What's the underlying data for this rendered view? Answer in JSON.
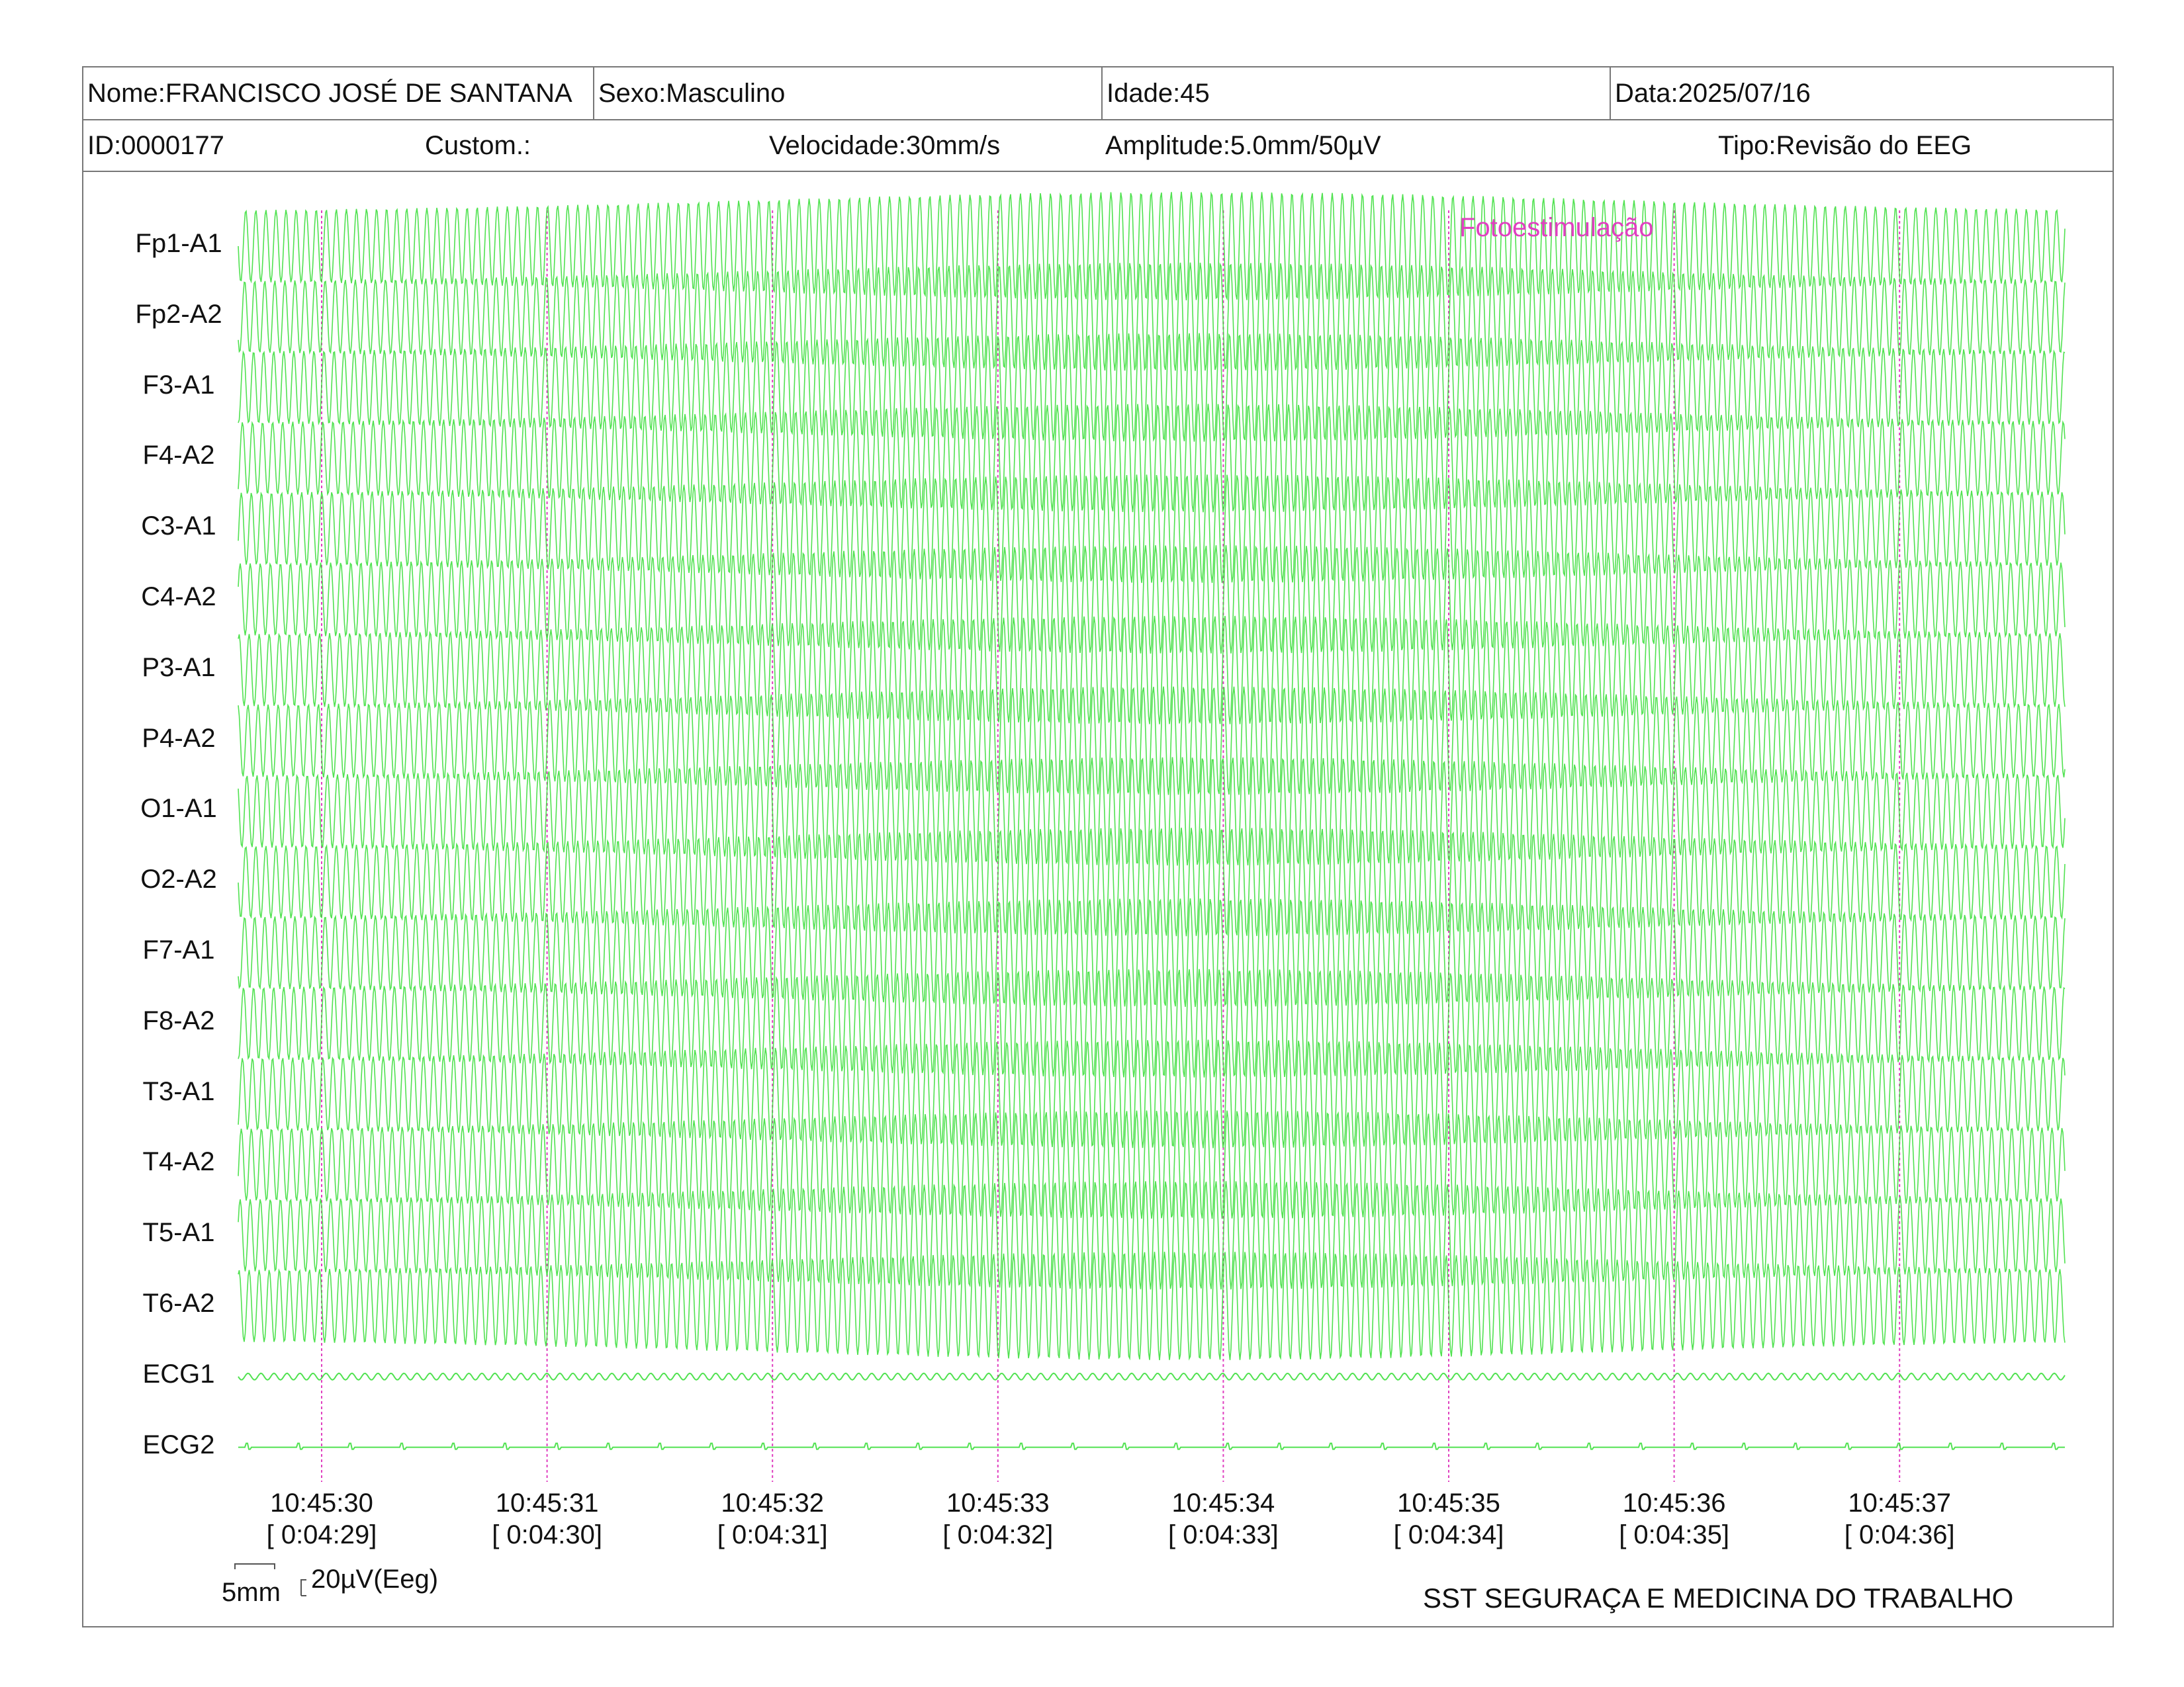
{
  "header": {
    "nome": "Nome:FRANCISCO JOSÉ DE SANTANA",
    "sexo": "Sexo:Masculino",
    "idade": "Idade:45",
    "data": "Data:2025/07/16",
    "id": "ID:0000177",
    "custom": "Custom.:",
    "velocidade": "Velocidade:30mm/s",
    "amplitude": "Amplitude:5.0mm/50µV",
    "tipo": "Tipo:Revisão do EEG"
  },
  "channels": [
    "Fp1-A1",
    "Fp2-A2",
    "F3-A1",
    "F4-A2",
    "C3-A1",
    "C4-A2",
    "P3-A1",
    "P4-A2",
    "O1-A1",
    "O2-A2",
    "F7-A1",
    "F8-A2",
    "T3-A1",
    "T4-A2",
    "T5-A1",
    "T6-A2",
    "ECG1",
    "ECG2"
  ],
  "event_marker": "Fotoestimulação",
  "time_marks": [
    {
      "clock": "10:45:30",
      "elapsed": "[ 0:04:29]"
    },
    {
      "clock": "10:45:31",
      "elapsed": "[ 0:04:30]"
    },
    {
      "clock": "10:45:32",
      "elapsed": "[ 0:04:31]"
    },
    {
      "clock": "10:45:33",
      "elapsed": "[ 0:04:32]"
    },
    {
      "clock": "10:45:34",
      "elapsed": "[ 0:04:33]"
    },
    {
      "clock": "10:45:35",
      "elapsed": "[ 0:04:34]"
    },
    {
      "clock": "10:45:36",
      "elapsed": "[ 0:04:35]"
    },
    {
      "clock": "10:45:37",
      "elapsed": "[ 0:04:36]"
    }
  ],
  "scale": {
    "time": "5mm",
    "amplitude": "20µV(Eeg)"
  },
  "footer": "SST SEGURAÇA E MEDICINA DO TRABALHO",
  "colors": {
    "trace": "#33dd33",
    "marker": "#e040c0",
    "border": "#777777"
  }
}
